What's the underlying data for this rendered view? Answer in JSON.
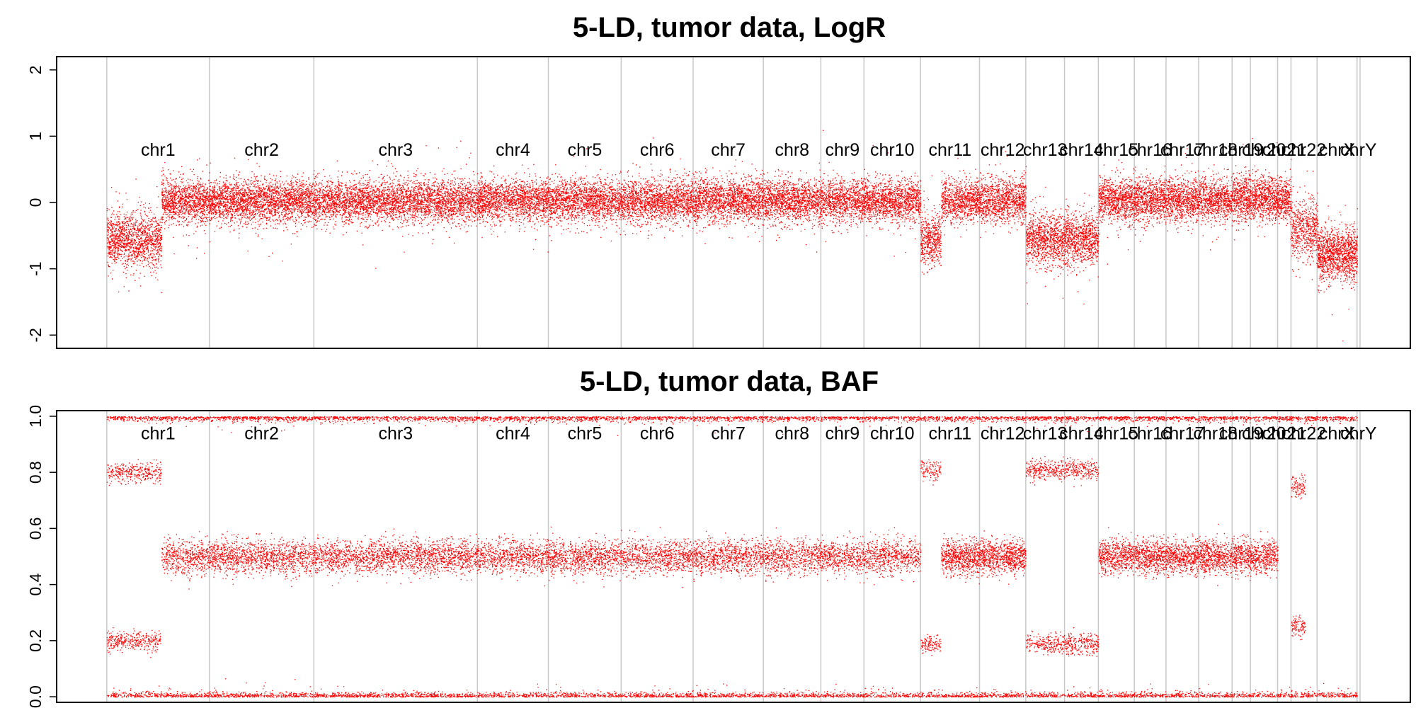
{
  "colors": {
    "points": "#ff0000",
    "separators": "#c8c8c8",
    "frame": "#000000"
  },
  "chromosomes": [
    {
      "name": "chr1",
      "start": 0,
      "end": 8.19
    },
    {
      "name": "chr2",
      "start": 8.19,
      "end": 16.52
    },
    {
      "name": "chr3",
      "start": 16.52,
      "end": 29.57
    },
    {
      "name": "chr4",
      "start": 29.57,
      "end": 35.23
    },
    {
      "name": "chr5",
      "start": 35.23,
      "end": 41.04
    },
    {
      "name": "chr6",
      "start": 41.04,
      "end": 46.78
    },
    {
      "name": "chr7",
      "start": 46.78,
      "end": 52.38
    },
    {
      "name": "chr8",
      "start": 52.38,
      "end": 56.97
    },
    {
      "name": "chr9",
      "start": 56.97,
      "end": 60.41
    },
    {
      "name": "chr10",
      "start": 60.41,
      "end": 64.92
    },
    {
      "name": "chr11",
      "start": 64.92,
      "end": 69.63
    },
    {
      "name": "chr12",
      "start": 69.63,
      "end": 73.32
    },
    {
      "name": "chr13",
      "start": 73.32,
      "end": 76.41
    },
    {
      "name": "chr14",
      "start": 76.41,
      "end": 79.11
    },
    {
      "name": "chr15",
      "start": 79.11,
      "end": 81.98
    },
    {
      "name": "chr16",
      "start": 81.98,
      "end": 84.51
    },
    {
      "name": "chr17",
      "start": 84.51,
      "end": 87.11
    },
    {
      "name": "chr18",
      "start": 87.11,
      "end": 89.78
    },
    {
      "name": "chr19",
      "start": 89.78,
      "end": 91.24
    },
    {
      "name": "chr20",
      "start": 91.24,
      "end": 93.41
    },
    {
      "name": "chr21",
      "start": 93.41,
      "end": 94.48
    },
    {
      "name": "chr22",
      "start": 94.48,
      "end": 96.56
    },
    {
      "name": "chrX",
      "start": 96.56,
      "end": 99.75
    },
    {
      "name": "chrY",
      "start": 99.75,
      "end": 99.99
    }
  ],
  "chart_data": [
    {
      "type": "scatter",
      "title": "5-LD, tumor data, LogR",
      "xlabel": "",
      "ylabel": "",
      "ylim": [
        -2.2,
        2.2
      ],
      "yticks": [
        -2,
        -1,
        0,
        1,
        2
      ],
      "ytick_labels": [
        "-2",
        "-1",
        "0",
        "1",
        "2"
      ],
      "xlim": [
        -4,
        104
      ],
      "chromosome_label_y": 0.8,
      "segments": [
        {
          "chr": "chr1",
          "from": 0,
          "to": 4.35,
          "center": -0.55,
          "spread": 0.2,
          "count": 1400
        },
        {
          "chr": "chr1",
          "from": 4.35,
          "to": 8.19,
          "center": 0.02,
          "spread": 0.17,
          "count": 1200
        },
        {
          "chr": "chr2",
          "from": 8.19,
          "to": 16.52,
          "center": 0.03,
          "spread": 0.16,
          "count": 2600
        },
        {
          "chr": "chr3",
          "from": 16.52,
          "to": 29.57,
          "center": 0.03,
          "spread": 0.16,
          "count": 3800
        },
        {
          "chr": "chr4",
          "from": 29.57,
          "to": 35.23,
          "center": 0.03,
          "spread": 0.16,
          "count": 1700
        },
        {
          "chr": "chr5",
          "from": 35.23,
          "to": 41.04,
          "center": 0.03,
          "spread": 0.16,
          "count": 1700
        },
        {
          "chr": "chr6",
          "from": 41.04,
          "to": 46.78,
          "center": 0.03,
          "spread": 0.16,
          "count": 1700
        },
        {
          "chr": "chr7",
          "from": 46.78,
          "to": 52.38,
          "center": 0.04,
          "spread": 0.16,
          "count": 1700
        },
        {
          "chr": "chr8",
          "from": 52.38,
          "to": 56.97,
          "center": 0.03,
          "spread": 0.16,
          "count": 1400
        },
        {
          "chr": "chr9",
          "from": 56.97,
          "to": 60.41,
          "center": 0.03,
          "spread": 0.16,
          "count": 1000
        },
        {
          "chr": "chr10",
          "from": 60.41,
          "to": 64.92,
          "center": 0.03,
          "spread": 0.16,
          "count": 1400
        },
        {
          "chr": "chr11",
          "from": 64.92,
          "to": 66.55,
          "center": -0.55,
          "spread": 0.2,
          "count": 500
        },
        {
          "chr": "chr11",
          "from": 66.55,
          "to": 69.63,
          "center": 0.03,
          "spread": 0.16,
          "count": 900
        },
        {
          "chr": "chr12",
          "from": 69.63,
          "to": 73.32,
          "center": 0.03,
          "spread": 0.16,
          "count": 1100
        },
        {
          "chr": "chr13",
          "from": 73.32,
          "to": 76.41,
          "center": -0.55,
          "spread": 0.2,
          "count": 1000
        },
        {
          "chr": "chr14",
          "from": 76.41,
          "to": 79.11,
          "center": -0.55,
          "spread": 0.2,
          "count": 900
        },
        {
          "chr": "chr15",
          "from": 79.11,
          "to": 81.98,
          "center": 0.05,
          "spread": 0.16,
          "count": 900
        },
        {
          "chr": "chr16",
          "from": 81.98,
          "to": 84.51,
          "center": 0.05,
          "spread": 0.16,
          "count": 800
        },
        {
          "chr": "chr17",
          "from": 84.51,
          "to": 87.11,
          "center": 0.05,
          "spread": 0.16,
          "count": 800
        },
        {
          "chr": "chr18",
          "from": 87.11,
          "to": 89.78,
          "center": 0.05,
          "spread": 0.16,
          "count": 800
        },
        {
          "chr": "chr19",
          "from": 89.78,
          "to": 91.24,
          "center": 0.08,
          "spread": 0.18,
          "count": 500
        },
        {
          "chr": "chr20",
          "from": 91.24,
          "to": 93.41,
          "center": 0.06,
          "spread": 0.16,
          "count": 700
        },
        {
          "chr": "chr21",
          "from": 93.41,
          "to": 94.48,
          "center": 0.05,
          "spread": 0.16,
          "count": 350
        },
        {
          "chr": "chr22",
          "from": 94.48,
          "to": 96.56,
          "center": -0.4,
          "spread": 0.22,
          "count": 600
        },
        {
          "chr": "chrX",
          "from": 96.56,
          "to": 99.75,
          "center": -0.78,
          "spread": 0.2,
          "count": 1300
        }
      ]
    },
    {
      "type": "scatter",
      "title": "5-LD, tumor data, BAF",
      "xlabel": "",
      "ylabel": "",
      "ylim": [
        -0.02,
        1.02
      ],
      "yticks": [
        0.0,
        0.2,
        0.4,
        0.6,
        0.8,
        1.0
      ],
      "ytick_labels": [
        "0.0",
        "0.2",
        "0.4",
        "0.6",
        "0.8",
        "1.0"
      ],
      "xlim": [
        -4,
        104
      ],
      "chromosome_label_y": 0.94,
      "bands": [
        {
          "from": 0,
          "to": 99.75,
          "values": [
            0.0,
            1.0
          ],
          "spread": 0.008,
          "count": 9000
        },
        {
          "from": 0,
          "to": 4.35,
          "values": [
            0.2,
            0.8
          ],
          "spread": 0.018,
          "count": 700
        },
        {
          "from": 4.35,
          "to": 64.92,
          "values": [
            0.5
          ],
          "spread": 0.03,
          "count": 9000
        },
        {
          "from": 64.92,
          "to": 66.55,
          "values": [
            0.19,
            0.81
          ],
          "spread": 0.018,
          "count": 250
        },
        {
          "from": 66.55,
          "to": 73.32,
          "values": [
            0.5
          ],
          "spread": 0.03,
          "count": 1500
        },
        {
          "from": 73.32,
          "to": 79.11,
          "values": [
            0.19,
            0.81
          ],
          "spread": 0.018,
          "count": 1000
        },
        {
          "from": 79.11,
          "to": 93.41,
          "values": [
            0.5
          ],
          "spread": 0.03,
          "count": 3000
        },
        {
          "from": 94.48,
          "to": 95.6,
          "values": [
            0.25,
            0.75
          ],
          "spread": 0.02,
          "count": 200
        }
      ]
    }
  ]
}
